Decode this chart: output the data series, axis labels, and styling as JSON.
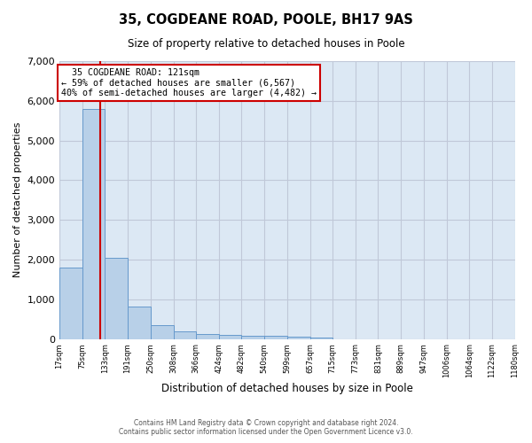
{
  "title": "35, COGDEANE ROAD, POOLE, BH17 9AS",
  "subtitle": "Size of property relative to detached houses in Poole",
  "xlabel": "Distribution of detached houses by size in Poole",
  "ylabel": "Number of detached properties",
  "bin_edges": [
    17,
    75,
    133,
    191,
    250,
    308,
    366,
    424,
    482,
    540,
    599,
    657,
    715,
    773,
    831,
    889,
    947,
    1006,
    1064,
    1122,
    1180
  ],
  "bar_heights": [
    1800,
    5800,
    2050,
    820,
    340,
    190,
    120,
    100,
    90,
    70,
    60,
    30,
    0,
    0,
    0,
    0,
    0,
    0,
    0,
    0
  ],
  "bar_color": "#b8d0e8",
  "bar_edge_color": "#6699cc",
  "property_size": 121,
  "vline_color": "#cc0000",
  "annotation_text": "  35 COGDEANE ROAD: 121sqm\n← 59% of detached houses are smaller (6,567)\n40% of semi-detached houses are larger (4,482) →",
  "annotation_box_color": "#cc0000",
  "ylim": [
    0,
    7000
  ],
  "yticks": [
    0,
    1000,
    2000,
    3000,
    4000,
    5000,
    6000,
    7000
  ],
  "grid_color": "#c0c8d8",
  "bg_color": "#dce8f4",
  "footer1": "Contains HM Land Registry data © Crown copyright and database right 2024.",
  "footer2": "Contains public sector information licensed under the Open Government Licence v3.0."
}
